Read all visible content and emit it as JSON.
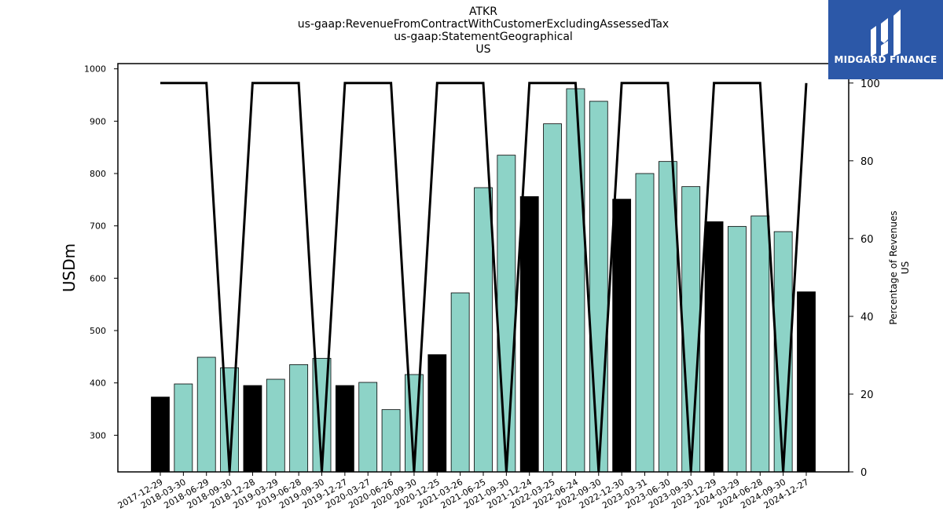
{
  "title_lines": [
    "ATKR",
    "us-gaap:RevenueFromContractWithCustomerExcludingAssessedTax",
    "us-gaap:StatementGeographical",
    "US"
  ],
  "logo": {
    "text": "MIDGARD FINANCE",
    "bg": "#2c58a8"
  },
  "chart_data": {
    "type": "bar",
    "ylabel": "USDm",
    "y2label": [
      "Percentage of Revenues",
      "US"
    ],
    "ylim": [
      230,
      1010
    ],
    "y2lim": [
      0,
      105
    ],
    "yticks": [
      300,
      400,
      500,
      600,
      700,
      800,
      900,
      1000
    ],
    "y2ticks": [
      0,
      20,
      40,
      60,
      80,
      100
    ],
    "colors": {
      "annual": "#000000",
      "quarter": "#8dd3c7",
      "line": "#000000"
    },
    "categories": [
      "2017-12-29",
      "2018-03-30",
      "2018-06-29",
      "2018-09-30",
      "2018-12-28",
      "2019-03-29",
      "2019-06-28",
      "2019-09-30",
      "2019-12-27",
      "2020-03-27",
      "2020-06-26",
      "2020-09-30",
      "2020-12-25",
      "2021-03-26",
      "2021-06-25",
      "2021-09-30",
      "2021-12-24",
      "2022-03-25",
      "2022-06-24",
      "2022-09-30",
      "2022-12-30",
      "2023-03-31",
      "2023-06-30",
      "2023-09-30",
      "2023-12-29",
      "2024-03-29",
      "2024-06-28",
      "2024-09-30",
      "2024-12-27"
    ],
    "values": [
      373,
      398,
      449,
      429,
      395,
      407,
      435,
      447,
      395,
      401,
      349,
      416,
      454,
      572,
      773,
      835,
      756,
      895,
      962,
      938,
      751,
      800,
      823,
      775,
      708,
      699,
      719,
      689,
      574
    ],
    "highlight": [
      true,
      false,
      false,
      false,
      true,
      false,
      false,
      false,
      true,
      false,
      false,
      false,
      true,
      false,
      false,
      false,
      true,
      false,
      false,
      false,
      true,
      false,
      false,
      false,
      true,
      false,
      false,
      false,
      true
    ],
    "percent": [
      100,
      100,
      100,
      0,
      100,
      100,
      100,
      0,
      100,
      100,
      100,
      0,
      100,
      100,
      100,
      0,
      100,
      100,
      100,
      0,
      100,
      100,
      100,
      0,
      100,
      100,
      100,
      0,
      100
    ]
  }
}
